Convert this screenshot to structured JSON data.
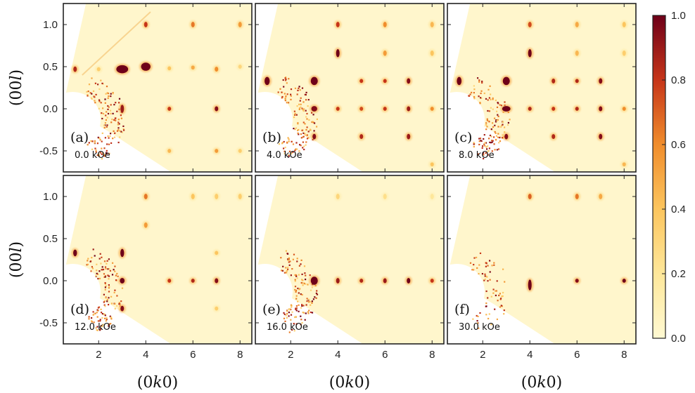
{
  "chart_data": {
    "type": "heatmap",
    "colormap": "YlOrRd-like (pale yellow → dark red)",
    "colors": {
      "low": "#fff9d2",
      "mid": "#f3a52f",
      "high": "#73001a",
      "background": "#fff6cc"
    },
    "xlabel": {
      "prefix": "(0",
      "italic": "k",
      "suffix": "0)"
    },
    "ylabel": {
      "prefix": "(00",
      "italic": "l",
      "suffix": ")"
    },
    "xlim": [
      0.5,
      8.5
    ],
    "ylim": [
      -0.75,
      1.25
    ],
    "xticks": [
      2,
      4,
      6,
      8
    ],
    "xtick_labels": [
      "2",
      "4",
      "6",
      "8"
    ],
    "yticks": [
      1.0,
      0.5,
      0.0,
      -0.5
    ],
    "ytick_labels": [
      "1.0",
      "0.5",
      "0.0",
      "-0.5"
    ],
    "colorbar": {
      "range": [
        0,
        1
      ],
      "ticks": [
        "1.0",
        "0.8",
        "0.6",
        "0.4",
        "0.2",
        "0.0"
      ]
    },
    "panels": [
      {
        "label": "(a)",
        "field": "0.0 kOe",
        "peaks": [
          {
            "k": 1.0,
            "l": 0.47,
            "i": 0.85,
            "w": 0.14,
            "h": 0.02
          },
          {
            "k": 2.0,
            "l": 0.47,
            "i": 0.35,
            "w": 0.1,
            "h": 0.015
          },
          {
            "k": 3.0,
            "l": 0.47,
            "i": 1.0,
            "w": 0.5,
            "h": 0.03
          },
          {
            "k": 4.0,
            "l": 0.5,
            "i": 1.0,
            "w": 0.4,
            "h": 0.03
          },
          {
            "k": 5.0,
            "l": 0.48,
            "i": 0.4,
            "w": 0.14,
            "h": 0.015
          },
          {
            "k": 6.0,
            "l": 0.49,
            "i": 0.5,
            "w": 0.15,
            "h": 0.015
          },
          {
            "k": 7.0,
            "l": 0.47,
            "i": 0.6,
            "w": 0.15,
            "h": 0.018
          },
          {
            "k": 8.0,
            "l": 0.5,
            "i": 0.3,
            "w": 0.15,
            "h": 0.015
          },
          {
            "k": 4.0,
            "l": 1.0,
            "i": 0.8,
            "w": 0.06,
            "h": 0.02
          },
          {
            "k": 6.0,
            "l": 1.0,
            "i": 0.65,
            "w": 0.06,
            "h": 0.02
          },
          {
            "k": 8.0,
            "l": 1.0,
            "i": 0.55,
            "w": 0.08,
            "h": 0.02
          },
          {
            "k": 3.0,
            "l": 0.0,
            "i": 0.9,
            "w": 0.12,
            "h": 0.03
          },
          {
            "k": 5.0,
            "l": 0.0,
            "i": 0.8,
            "w": 0.07,
            "h": 0.015
          },
          {
            "k": 7.0,
            "l": 0.0,
            "i": 0.95,
            "w": 0.15,
            "h": 0.018
          },
          {
            "k": 5.0,
            "l": -0.5,
            "i": 0.45,
            "w": 0.12,
            "h": 0.015
          },
          {
            "k": 7.0,
            "l": -0.5,
            "i": 0.55,
            "w": 0.15,
            "h": 0.015
          },
          {
            "k": 8.0,
            "l": -0.5,
            "i": 0.35,
            "w": 0.15,
            "h": 0.015
          }
        ]
      },
      {
        "label": "(b)",
        "field": "4.0 kOe",
        "peaks": [
          {
            "k": 1.0,
            "l": 0.33,
            "i": 1.0,
            "w": 0.22,
            "h": 0.03
          },
          {
            "k": 3.0,
            "l": 0.33,
            "i": 1.0,
            "w": 0.3,
            "h": 0.03
          },
          {
            "k": 5.0,
            "l": 0.33,
            "i": 0.8,
            "w": 0.08,
            "h": 0.015
          },
          {
            "k": 6.0,
            "l": 0.33,
            "i": 0.8,
            "w": 0.08,
            "h": 0.015
          },
          {
            "k": 7.0,
            "l": 0.33,
            "i": 0.95,
            "w": 0.15,
            "h": 0.02
          },
          {
            "k": 4.0,
            "l": 0.66,
            "i": 1.0,
            "w": 0.15,
            "h": 0.03
          },
          {
            "k": 6.0,
            "l": 0.66,
            "i": 0.55,
            "w": 0.08,
            "h": 0.02
          },
          {
            "k": 8.0,
            "l": 0.66,
            "i": 0.4,
            "w": 0.08,
            "h": 0.02
          },
          {
            "k": 4.0,
            "l": 1.0,
            "i": 0.8,
            "w": 0.06,
            "h": 0.02
          },
          {
            "k": 6.0,
            "l": 1.0,
            "i": 0.6,
            "w": 0.06,
            "h": 0.02
          },
          {
            "k": 8.0,
            "l": 1.0,
            "i": 0.45,
            "w": 0.08,
            "h": 0.02
          },
          {
            "k": 3.0,
            "l": 0.0,
            "i": 0.95,
            "w": 0.25,
            "h": 0.02
          },
          {
            "k": 4.0,
            "l": 0.0,
            "i": 0.8,
            "w": 0.08,
            "h": 0.015
          },
          {
            "k": 5.0,
            "l": 0.0,
            "i": 0.75,
            "w": 0.08,
            "h": 0.015
          },
          {
            "k": 6.0,
            "l": 0.0,
            "i": 0.8,
            "w": 0.08,
            "h": 0.015
          },
          {
            "k": 7.0,
            "l": 0.0,
            "i": 0.9,
            "w": 0.15,
            "h": 0.018
          },
          {
            "k": 8.0,
            "l": 0.0,
            "i": 0.6,
            "w": 0.1,
            "h": 0.015
          },
          {
            "k": 3.0,
            "l": -0.33,
            "i": 0.95,
            "w": 0.15,
            "h": 0.02
          },
          {
            "k": 5.0,
            "l": -0.33,
            "i": 0.85,
            "w": 0.1,
            "h": 0.018
          },
          {
            "k": 7.0,
            "l": -0.33,
            "i": 0.9,
            "w": 0.14,
            "h": 0.02
          },
          {
            "k": 8.0,
            "l": -0.66,
            "i": 0.4,
            "w": 0.08,
            "h": 0.015
          }
        ]
      },
      {
        "label": "(c)",
        "field": "8.0 kOe",
        "peaks": [
          {
            "k": 1.0,
            "l": 0.33,
            "i": 1.0,
            "w": 0.2,
            "h": 0.03
          },
          {
            "k": 3.0,
            "l": 0.33,
            "i": 1.0,
            "w": 0.3,
            "h": 0.03
          },
          {
            "k": 5.0,
            "l": 0.33,
            "i": 0.85,
            "w": 0.1,
            "h": 0.018
          },
          {
            "k": 6.0,
            "l": 0.33,
            "i": 0.85,
            "w": 0.08,
            "h": 0.015
          },
          {
            "k": 7.0,
            "l": 0.33,
            "i": 0.95,
            "w": 0.15,
            "h": 0.02
          },
          {
            "k": 4.0,
            "l": 0.66,
            "i": 1.0,
            "w": 0.15,
            "h": 0.03
          },
          {
            "k": 6.0,
            "l": 0.66,
            "i": 0.45,
            "w": 0.08,
            "h": 0.02
          },
          {
            "k": 8.0,
            "l": 0.66,
            "i": 0.35,
            "w": 0.08,
            "h": 0.02
          },
          {
            "k": 4.0,
            "l": 1.0,
            "i": 0.75,
            "w": 0.06,
            "h": 0.02
          },
          {
            "k": 6.0,
            "l": 1.0,
            "i": 0.5,
            "w": 0.06,
            "h": 0.02
          },
          {
            "k": 8.0,
            "l": 1.0,
            "i": 0.4,
            "w": 0.08,
            "h": 0.02
          },
          {
            "k": 3.0,
            "l": 0.0,
            "i": 1.0,
            "w": 0.35,
            "h": 0.02
          },
          {
            "k": 4.0,
            "l": 0.0,
            "i": 0.85,
            "w": 0.08,
            "h": 0.015
          },
          {
            "k": 5.0,
            "l": 0.0,
            "i": 0.8,
            "w": 0.08,
            "h": 0.015
          },
          {
            "k": 6.0,
            "l": 0.0,
            "i": 0.85,
            "w": 0.08,
            "h": 0.015
          },
          {
            "k": 7.0,
            "l": 0.0,
            "i": 0.95,
            "w": 0.15,
            "h": 0.018
          },
          {
            "k": 8.0,
            "l": 0.0,
            "i": 0.6,
            "w": 0.1,
            "h": 0.015
          },
          {
            "k": 3.0,
            "l": -0.33,
            "i": 0.95,
            "w": 0.15,
            "h": 0.02
          },
          {
            "k": 5.0,
            "l": -0.33,
            "i": 0.85,
            "w": 0.1,
            "h": 0.018
          },
          {
            "k": 7.0,
            "l": -0.33,
            "i": 0.95,
            "w": 0.14,
            "h": 0.02
          },
          {
            "k": 8.0,
            "l": -0.66,
            "i": 0.45,
            "w": 0.08,
            "h": 0.015
          }
        ]
      },
      {
        "label": "(d)",
        "field": "12.0 kOe",
        "peaks": [
          {
            "k": 1.0,
            "l": 0.33,
            "i": 1.0,
            "w": 0.16,
            "h": 0.025
          },
          {
            "k": 3.0,
            "l": 0.33,
            "i": 1.0,
            "w": 0.16,
            "h": 0.03
          },
          {
            "k": 7.0,
            "l": 0.33,
            "i": 0.4,
            "w": 0.1,
            "h": 0.015
          },
          {
            "k": 4.0,
            "l": 0.66,
            "i": 0.55,
            "w": 0.08,
            "h": 0.02
          },
          {
            "k": 4.0,
            "l": 1.0,
            "i": 0.65,
            "w": 0.06,
            "h": 0.02
          },
          {
            "k": 6.0,
            "l": 1.0,
            "i": 0.4,
            "w": 0.06,
            "h": 0.02
          },
          {
            "k": 7.0,
            "l": 1.0,
            "i": 0.35,
            "w": 0.08,
            "h": 0.02
          },
          {
            "k": 8.0,
            "l": 1.0,
            "i": 0.35,
            "w": 0.08,
            "h": 0.02
          },
          {
            "k": 3.0,
            "l": 0.0,
            "i": 1.0,
            "w": 0.2,
            "h": 0.02
          },
          {
            "k": 5.0,
            "l": 0.0,
            "i": 0.8,
            "w": 0.07,
            "h": 0.015
          },
          {
            "k": 6.0,
            "l": 0.0,
            "i": 0.85,
            "w": 0.08,
            "h": 0.015
          },
          {
            "k": 7.0,
            "l": 0.0,
            "i": 0.95,
            "w": 0.15,
            "h": 0.018
          },
          {
            "k": 3.0,
            "l": -0.33,
            "i": 0.95,
            "w": 0.1,
            "h": 0.02
          },
          {
            "k": 7.0,
            "l": -0.33,
            "i": 0.35,
            "w": 0.1,
            "h": 0.015
          }
        ]
      },
      {
        "label": "(e)",
        "field": "16.0 kOe",
        "peaks": [
          {
            "k": 3.0,
            "l": 0.0,
            "i": 1.0,
            "w": 0.3,
            "h": 0.03
          },
          {
            "k": 4.0,
            "l": 0.0,
            "i": 0.9,
            "w": 0.06,
            "h": 0.02
          },
          {
            "k": 5.0,
            "l": 0.0,
            "i": 0.85,
            "w": 0.08,
            "h": 0.015
          },
          {
            "k": 6.0,
            "l": 0.0,
            "i": 0.9,
            "w": 0.1,
            "h": 0.018
          },
          {
            "k": 7.0,
            "l": 0.0,
            "i": 1.0,
            "w": 0.15,
            "h": 0.02
          },
          {
            "k": 8.0,
            "l": 0.0,
            "i": 0.8,
            "w": 0.12,
            "h": 0.015
          },
          {
            "k": 4.0,
            "l": 1.0,
            "i": 0.3,
            "w": 0.06,
            "h": 0.02
          },
          {
            "k": 6.0,
            "l": 1.0,
            "i": 0.25,
            "w": 0.06,
            "h": 0.02
          },
          {
            "k": 8.0,
            "l": 1.0,
            "i": 0.2,
            "w": 0.08,
            "h": 0.02
          }
        ]
      },
      {
        "label": "(f)",
        "field": "30.0 kOe",
        "peaks": [
          {
            "k": 4.0,
            "l": -0.05,
            "i": 1.0,
            "w": 0.06,
            "h": 0.04
          },
          {
            "k": 6.0,
            "l": 0.0,
            "i": 0.95,
            "w": 0.08,
            "h": 0.015
          },
          {
            "k": 8.0,
            "l": 0.0,
            "i": 1.0,
            "w": 0.12,
            "h": 0.015
          },
          {
            "k": 4.0,
            "l": 1.0,
            "i": 0.7,
            "w": 0.06,
            "h": 0.02
          },
          {
            "k": 6.0,
            "l": 1.0,
            "i": 0.65,
            "w": 0.06,
            "h": 0.02
          },
          {
            "k": 7.0,
            "l": 1.0,
            "i": 0.5,
            "w": 0.08,
            "h": 0.02
          }
        ]
      }
    ]
  }
}
